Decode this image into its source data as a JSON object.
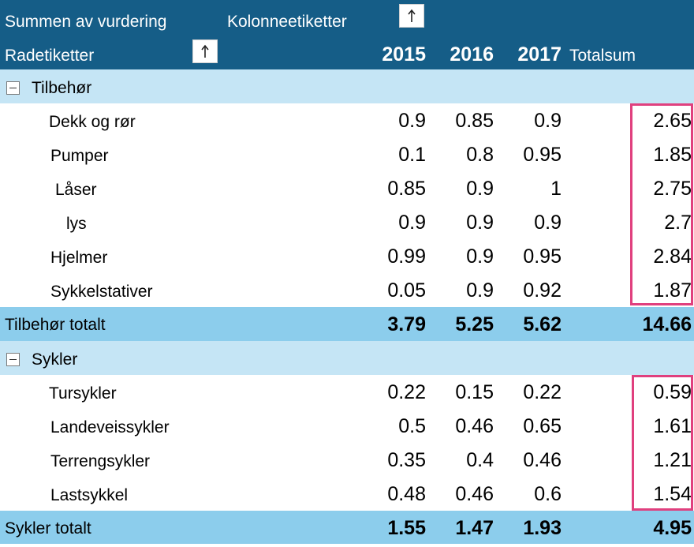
{
  "header": {
    "values_label": "Summen av vurdering",
    "column_labels": "Kolonneetiketter",
    "row_labels": "Radetiketter",
    "years": [
      "2015",
      "2016",
      "2017"
    ],
    "grand_total_label": "Totalsum"
  },
  "groups": [
    {
      "name": "Tilbehør",
      "items": [
        {
          "label": "Dekk og rør",
          "v2015": "0.9",
          "v2016": "0.85",
          "v2017": "0.9",
          "total": "2.65"
        },
        {
          "label": "Pumper",
          "v2015": "0.1",
          "v2016": "0.8",
          "v2017": "0.95",
          "total": "1.85"
        },
        {
          "label": "Låser",
          "v2015": "0.85",
          "v2016": "0.9",
          "v2017": "1",
          "total": "2.75"
        },
        {
          "label": "lys",
          "v2015": "0.9",
          "v2016": "0.9",
          "v2017": "0.9",
          "total": "2.7"
        },
        {
          "label": "Hjelmer",
          "v2015": "0.99",
          "v2016": "0.9",
          "v2017": "0.95",
          "total": "2.84"
        },
        {
          "label": "Sykkelstativer",
          "v2015": "0.05",
          "v2016": "0.9",
          "v2017": "0.92",
          "total": "1.87"
        }
      ],
      "total": {
        "label": "Tilbehør totalt",
        "v2015": "3.79",
        "v2016": "5.25",
        "v2017": "5.62",
        "total": "14.66"
      }
    },
    {
      "name": "Sykler",
      "items": [
        {
          "label": "Tursykler",
          "v2015": "0.22",
          "v2016": "0.15",
          "v2017": "0.22",
          "total": "0.59"
        },
        {
          "label": "Landeveissykler",
          "v2015": "0.5",
          "v2016": "0.46",
          "v2017": "0.65",
          "total": "1.61"
        },
        {
          "label": "Terrengsykler",
          "v2015": "0.35",
          "v2016": "0.4",
          "v2017": "0.46",
          "total": "1.21"
        },
        {
          "label": "Lastsykkel",
          "v2015": "0.48",
          "v2016": "0.46",
          "v2017": "0.6",
          "total": "1.54"
        }
      ],
      "total": {
        "label": "Sykler totalt",
        "v2015": "1.55",
        "v2016": "1.47",
        "v2017": "1.93",
        "total": "4.95"
      }
    }
  ],
  "colors": {
    "header_bg": "#155d87",
    "group_bg": "#c5e5f5",
    "total_bg": "#8ccdec",
    "highlight": "#e0407e"
  }
}
